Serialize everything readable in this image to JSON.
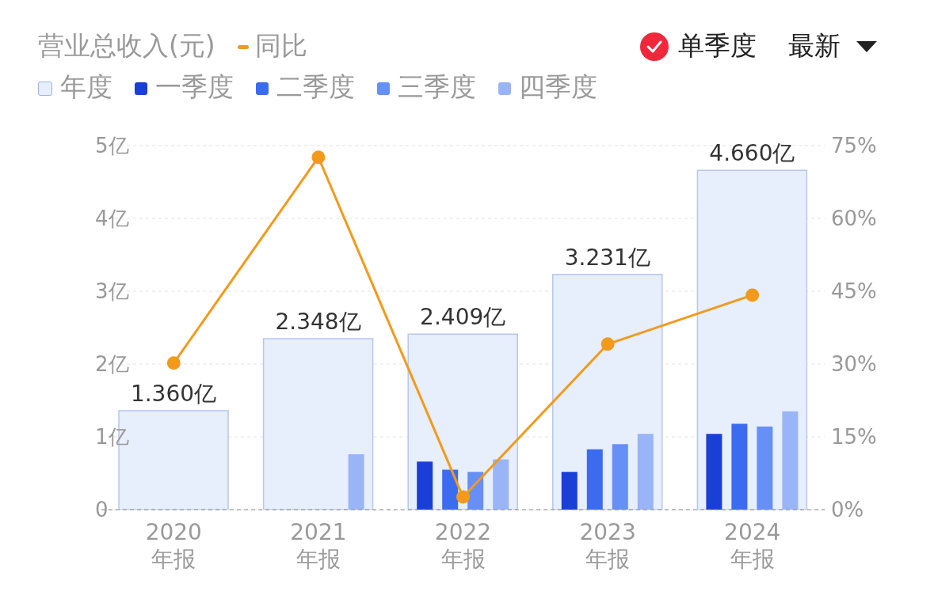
{
  "chart_data": {
    "type": "bar",
    "title": "营业总收入(元)",
    "categories": [
      "2020\n年报",
      "2021\n年报",
      "2022\n年报",
      "2023\n年报",
      "2024\n年报"
    ],
    "series": [
      {
        "name": "年度",
        "color": "#e7eefc",
        "values": [
          1.36,
          2.348,
          2.409,
          3.231,
          4.66
        ],
        "value_labels": [
          "1.360亿",
          "2.348亿",
          "2.409亿",
          "3.231亿",
          "4.660亿"
        ]
      },
      {
        "name": "一季度",
        "color": "#1a3fd6",
        "values": [
          null,
          null,
          0.66,
          0.52,
          1.04
        ]
      },
      {
        "name": "二季度",
        "color": "#3b6cf0",
        "values": [
          null,
          null,
          0.55,
          0.83,
          1.18
        ]
      },
      {
        "name": "三季度",
        "color": "#6690f5",
        "values": [
          null,
          null,
          0.52,
          0.9,
          1.14
        ]
      },
      {
        "name": "四季度",
        "color": "#9ab5f7",
        "values": [
          null,
          0.76,
          0.69,
          1.04,
          1.35
        ]
      },
      {
        "name": "同比",
        "type": "line",
        "axis": "y2",
        "color": "#f29a1b",
        "values": [
          30.2,
          72.6,
          2.6,
          34.1,
          44.2
        ]
      }
    ],
    "ylim": [
      0,
      5
    ],
    "yticks": [
      {
        "value": 0,
        "label": "0"
      },
      {
        "value": 1,
        "label": "1亿"
      },
      {
        "value": 2,
        "label": "2亿"
      },
      {
        "value": 3,
        "label": "3亿"
      },
      {
        "value": 4,
        "label": "4亿"
      },
      {
        "value": 5,
        "label": "5亿"
      }
    ],
    "y2lim": [
      0,
      75
    ],
    "y2ticks": [
      {
        "value": 0,
        "label": "0%"
      },
      {
        "value": 15,
        "label": "15%"
      },
      {
        "value": 30,
        "label": "30%"
      },
      {
        "value": 45,
        "label": "45%"
      },
      {
        "value": 60,
        "label": "60%"
      },
      {
        "value": 75,
        "label": "75%"
      }
    ],
    "annotations": [
      "单季度",
      "最新"
    ],
    "grid": "y",
    "legend": "top left",
    "marker": "circle",
    "line_style": "solid"
  }
}
